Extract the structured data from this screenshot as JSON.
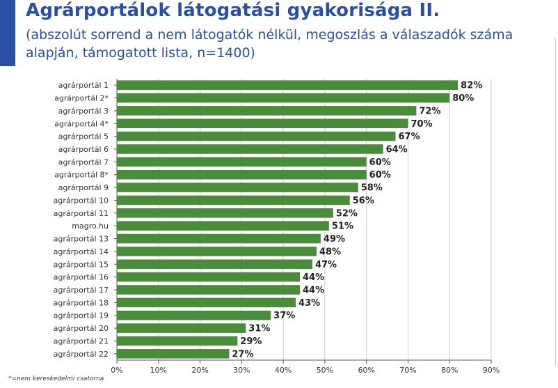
{
  "header": {
    "title": "Agrárportálok látogatási gyakorisága II.",
    "subtitle": "(abszolút sorrend a nem látogatók nélkül, megoszlás a válaszadók száma alapján, támogatott lista, n=1400)"
  },
  "footnote": "*=nem kereskedelmi csatorna",
  "colors": {
    "bar": "#4a8c3b",
    "title": "#2a4fa3",
    "grid": "#bfbfbf",
    "axis": "#555555"
  },
  "chart_data": {
    "type": "bar",
    "orientation": "horizontal",
    "categories": [
      "agrárportál 1",
      "agrárportál 2*",
      "agrárportál 3",
      "agrárportál 4*",
      "agrárportál 5",
      "agrárportál 6",
      "agrárportál 7",
      "agrárportál 8*",
      "agrárportál 9",
      "agrárportál 10",
      "agrárportál 11",
      "magro.hu",
      "agrárportál 13",
      "agrárportál 14",
      "agrárportál 15",
      "agrárportál 16",
      "agrárportál 17",
      "agrárportál 18",
      "agrárportál 19",
      "agrárportál 20",
      "agrárportál 21",
      "agrárportál 22"
    ],
    "values": [
      82,
      80,
      72,
      70,
      67,
      64,
      60,
      60,
      58,
      56,
      52,
      51,
      49,
      48,
      47,
      44,
      44,
      43,
      37,
      31,
      29,
      27
    ],
    "data_labels": [
      "82%",
      "80%",
      "72%",
      "70%",
      "67%",
      "64%",
      "60%",
      "60%",
      "58%",
      "56%",
      "52%",
      "51%",
      "49%",
      "48%",
      "47%",
      "44%",
      "44%",
      "43%",
      "37%",
      "31%",
      "29%",
      "27%"
    ],
    "x_ticks": [
      "0%",
      "10%",
      "20%",
      "30%",
      "40%",
      "50%",
      "60%",
      "70%",
      "80%",
      "90%"
    ],
    "xlim": [
      0,
      90
    ],
    "grid": true
  }
}
